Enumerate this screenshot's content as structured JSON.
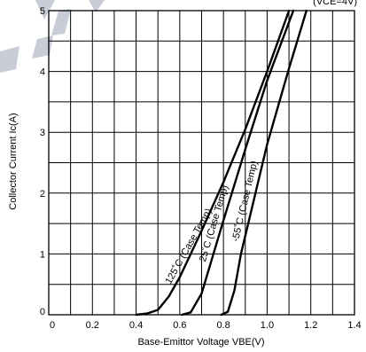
{
  "chart_data": {
    "type": "line",
    "title": "",
    "condition_label": "(VCE=4V)",
    "xlabel": "Base-Emittor Voltage VBE(V)",
    "ylabel": "Collector Current Ic(A)",
    "xlim": [
      0,
      1.4
    ],
    "ylim": [
      0,
      5
    ],
    "x_ticks": [
      "0",
      "0.2",
      "0.4",
      "0.6",
      "0.8",
      "1.0",
      "1.2",
      "1.4"
    ],
    "y_ticks": [
      "0",
      "1",
      "2",
      "3",
      "4",
      "5"
    ],
    "grid": true,
    "series": [
      {
        "name": "125˚C (Case Temp)",
        "points": [
          [
            0.4,
            0
          ],
          [
            0.45,
            0.02
          ],
          [
            0.5,
            0.08
          ],
          [
            0.55,
            0.3
          ],
          [
            0.6,
            0.62
          ],
          [
            0.7,
            1.38
          ],
          [
            0.8,
            2.18
          ],
          [
            0.9,
            3.05
          ],
          [
            1.0,
            4.0
          ],
          [
            1.1,
            5.0
          ]
        ]
      },
      {
        "name": "25˚C (Case Temp)",
        "points": [
          [
            0.61,
            0
          ],
          [
            0.65,
            0.04
          ],
          [
            0.7,
            0.35
          ],
          [
            0.75,
            0.95
          ],
          [
            0.8,
            1.55
          ],
          [
            0.9,
            2.72
          ],
          [
            1.0,
            3.85
          ],
          [
            1.12,
            5.0
          ]
        ]
      },
      {
        "name": "-55˚C (Case Temp)",
        "points": [
          [
            0.79,
            0
          ],
          [
            0.82,
            0.05
          ],
          [
            0.85,
            0.4
          ],
          [
            0.88,
            1.0
          ],
          [
            0.95,
            2.05
          ],
          [
            1.0,
            2.8
          ],
          [
            1.1,
            4.05
          ],
          [
            1.18,
            5.0
          ]
        ]
      }
    ]
  }
}
